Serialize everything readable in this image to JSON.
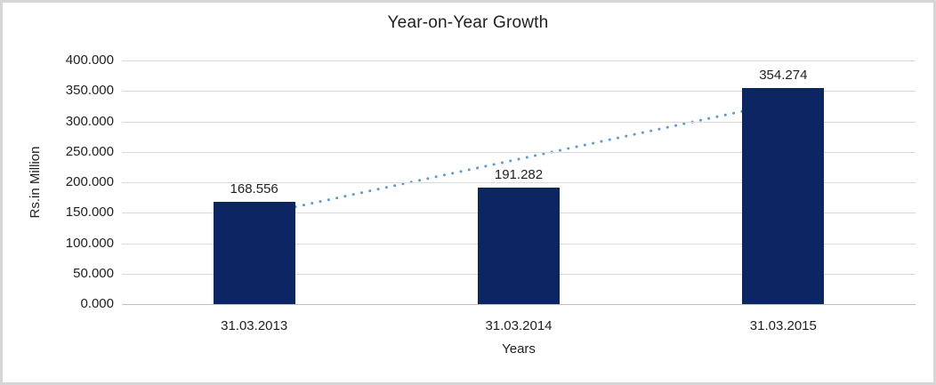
{
  "chart_data": {
    "type": "bar",
    "title": "Year-on-Year Growth",
    "categories": [
      "31.03.2013",
      "31.03.2014",
      "31.03.2015"
    ],
    "values": [
      168.556,
      191.282,
      354.274
    ],
    "data_labels": [
      "168.556",
      "191.282",
      "354.274"
    ],
    "xlabel": "Years",
    "ylabel": "Rs.in Million",
    "ylim": [
      0,
      400
    ],
    "ytick_step": 50,
    "ytick_labels": [
      "0.000",
      "50.000",
      "100.000",
      "150.000",
      "200.000",
      "250.000",
      "300.000",
      "350.000",
      "400.000"
    ],
    "grid": true,
    "legend": "none",
    "bar_color": "#0b2662",
    "gridline_color": "#d9d9d9",
    "axis_line_color": "#bfbfbf",
    "text_color": "#1f1f1f",
    "trendline": {
      "type": "linear",
      "style": "dotted",
      "color": "#5b9bd5"
    }
  }
}
